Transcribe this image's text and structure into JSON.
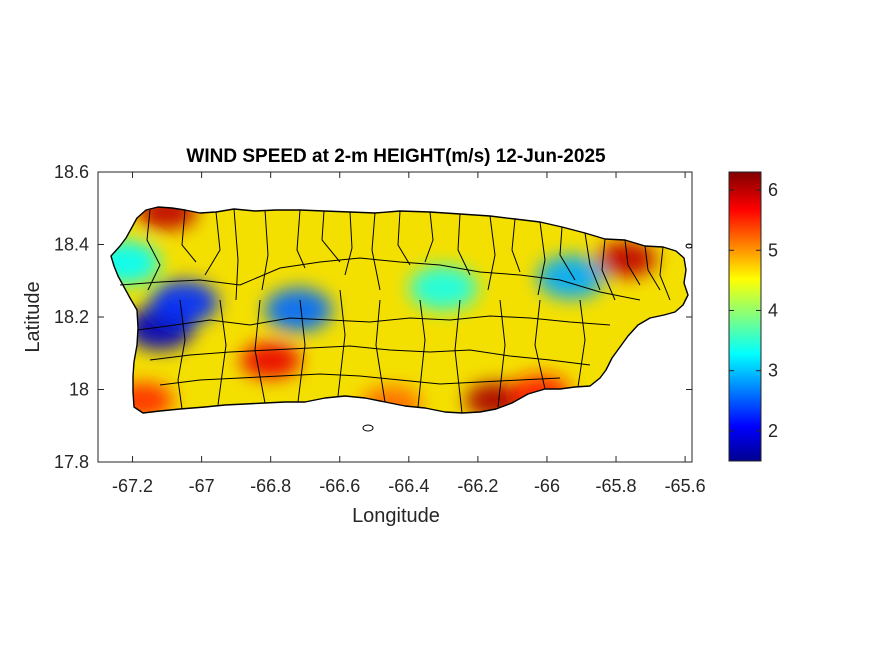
{
  "chart_data": {
    "type": "heatmap",
    "title": "WIND SPEED at 2-m HEIGHT(m/s) 12-Jun-2025",
    "xlabel": "Longitude",
    "ylabel": "Latitude",
    "xlim": [
      -67.3,
      -65.58
    ],
    "ylim": [
      17.8,
      18.6
    ],
    "xticks": [
      -67.2,
      -67.0,
      -66.8,
      -66.6,
      -66.4,
      -66.2,
      -66.0,
      -65.8,
      -65.6
    ],
    "xtick_labels": [
      "-67.2",
      "-67",
      "-66.8",
      "-66.6",
      "-66.4",
      "-66.2",
      "-66",
      "-65.8",
      "-65.6"
    ],
    "yticks": [
      17.8,
      18.0,
      18.2,
      18.4,
      18.6
    ],
    "ytick_labels": [
      "17.8",
      "18",
      "18.2",
      "18.4",
      "18.6"
    ],
    "colorbar": {
      "range": [
        1.5,
        6.3
      ],
      "ticks": [
        2,
        3,
        4,
        5,
        6
      ],
      "tick_labels": [
        "2",
        "3",
        "4",
        "5",
        "6"
      ],
      "colormap": "jet"
    },
    "grid": false,
    "hotspots": [
      {
        "name": "low",
        "lon": -67.12,
        "lat": 18.17,
        "value": 1.8
      },
      {
        "name": "low",
        "lon": -67.05,
        "lat": 18.24,
        "value": 2.3
      },
      {
        "name": "low",
        "lon": -66.72,
        "lat": 18.22,
        "value": 2.6
      },
      {
        "name": "low",
        "lon": -65.93,
        "lat": 18.31,
        "value": 2.9
      },
      {
        "name": "low",
        "lon": -66.3,
        "lat": 18.28,
        "value": 3.4
      },
      {
        "name": "low",
        "lon": -67.22,
        "lat": 18.35,
        "value": 3.3
      },
      {
        "name": "high",
        "lon": -67.1,
        "lat": 18.49,
        "value": 6.0
      },
      {
        "name": "high",
        "lon": -66.15,
        "lat": 17.97,
        "value": 6.1
      },
      {
        "name": "high",
        "lon": -65.77,
        "lat": 18.36,
        "value": 6.0
      },
      {
        "name": "high",
        "lon": -66.8,
        "lat": 18.08,
        "value": 5.8
      },
      {
        "name": "high",
        "lon": -66.02,
        "lat": 17.99,
        "value": 5.6
      },
      {
        "name": "high",
        "lon": -67.17,
        "lat": 17.97,
        "value": 5.5
      },
      {
        "name": "high",
        "lon": -66.45,
        "lat": 17.96,
        "value": 5.2
      }
    ]
  }
}
